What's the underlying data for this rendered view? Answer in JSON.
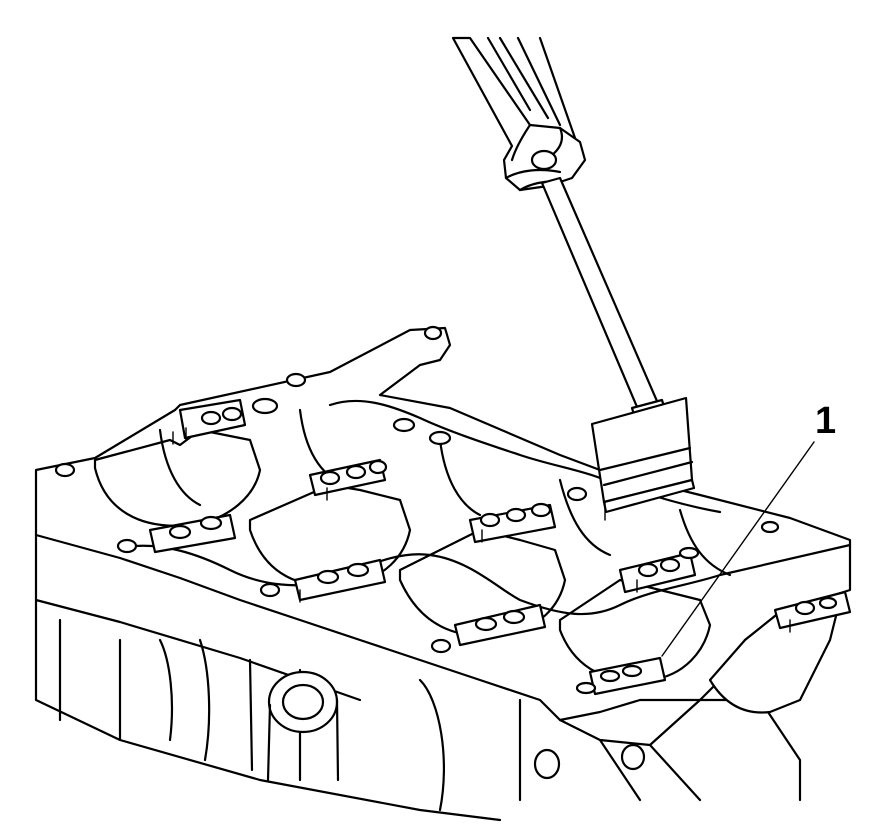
{
  "figure": {
    "callouts": [
      {
        "label": "1",
        "target": "gasket-sealing-surface"
      }
    ],
    "components": [
      "engine-block",
      "gasket-scraper-tool"
    ]
  }
}
